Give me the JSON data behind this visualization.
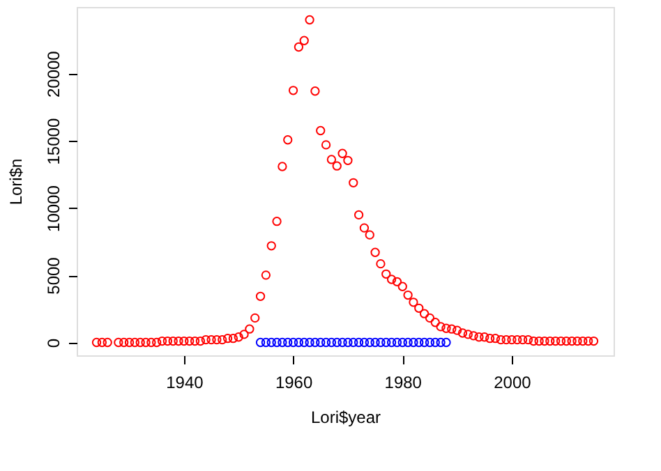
{
  "chart_data": {
    "type": "scatter",
    "xlabel": "Lori$year",
    "ylabel": "Lori$n",
    "series": [
      {
        "color": "#ff0000",
        "x": [
          1924,
          1925,
          1926,
          1928,
          1929,
          1930,
          1931,
          1932,
          1933,
          1934,
          1935,
          1936,
          1937,
          1938,
          1939,
          1940,
          1941,
          1942,
          1943,
          1944,
          1945,
          1946,
          1947,
          1948,
          1949,
          1950,
          1951,
          1952,
          1953,
          1954,
          1955,
          1956,
          1957,
          1958,
          1959,
          1960,
          1961,
          1962,
          1963,
          1964,
          1965,
          1966,
          1967,
          1968,
          1969,
          1970,
          1971,
          1972,
          1973,
          1974,
          1975,
          1976,
          1977,
          1978,
          1979,
          1980,
          1981,
          1982,
          1983,
          1984,
          1985,
          1986,
          1987,
          1988,
          1989,
          1990,
          1991,
          1992,
          1993,
          1994,
          1995,
          1996,
          1997,
          1998,
          1999,
          2000,
          2001,
          2002,
          2003,
          2004,
          2005,
          2006,
          2007,
          2008,
          2009,
          2010,
          2011,
          2012,
          2013,
          2014,
          2015
        ],
        "values": [
          0,
          0,
          0,
          0,
          0,
          0,
          0,
          0,
          0,
          0,
          0,
          100,
          100,
          100,
          100,
          100,
          100,
          100,
          100,
          200,
          200,
          200,
          200,
          300,
          300,
          400,
          600,
          1000,
          1820,
          3430,
          5010,
          7190,
          9010,
          13090,
          15070,
          18750,
          21980,
          22460,
          24000,
          18700,
          15760,
          14700,
          13610,
          13130,
          14060,
          13540,
          11880,
          9490,
          8520,
          8000,
          6700,
          5850,
          5090,
          4690,
          4520,
          4160,
          3520,
          2990,
          2550,
          2140,
          1820,
          1490,
          1170,
          1050,
          1000,
          900,
          700,
          600,
          500,
          400,
          400,
          300,
          300,
          200,
          200,
          200,
          200,
          200,
          200,
          100,
          100,
          100,
          100,
          100,
          100,
          100,
          100,
          100,
          100,
          100,
          100
        ]
      },
      {
        "color": "#0000ff",
        "x": [
          1954,
          1955,
          1956,
          1957,
          1958,
          1959,
          1960,
          1961,
          1962,
          1963,
          1964,
          1965,
          1966,
          1967,
          1968,
          1969,
          1970,
          1971,
          1972,
          1973,
          1974,
          1975,
          1976,
          1977,
          1978,
          1979,
          1980,
          1981,
          1982,
          1983,
          1984,
          1985,
          1986,
          1987,
          1988
        ],
        "values": [
          0,
          0,
          0,
          0,
          0,
          0,
          0,
          0,
          0,
          0,
          0,
          0,
          0,
          0,
          0,
          0,
          0,
          0,
          0,
          0,
          0,
          0,
          0,
          0,
          0,
          0,
          0,
          0,
          0,
          0,
          0,
          0,
          0,
          0,
          0
        ]
      }
    ],
    "xlim": [
      1920.36,
      2018.64
    ],
    "xticks": [
      1940,
      1960,
      1980,
      2000
    ],
    "ylim": [
      -960,
      24960
    ],
    "yticks": [
      0,
      5000,
      10000,
      15000,
      20000
    ],
    "grid": false,
    "legend": false,
    "marker": "circle"
  }
}
